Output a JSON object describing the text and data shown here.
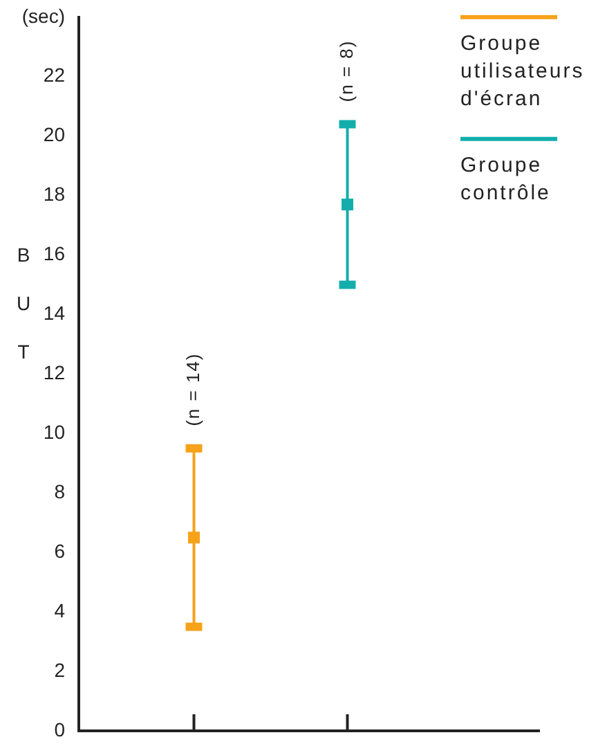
{
  "chart_data": {
    "type": "scatter",
    "ylabel": "BUT",
    "categories": [
      null,
      null
    ],
    "series": [
      {
        "name": "Groupe utilisateurs d'écran",
        "color": "#f7a21b",
        "values": [
          6.5,
          null
        ],
        "errors": [
          [
            3.5,
            9.5
          ],
          null
        ]
      },
      {
        "name": "Groupe contrôle",
        "color": "#13aeac",
        "values": [
          null,
          17.7
        ],
        "errors": [
          null,
          [
            15,
            20.4
          ]
        ]
      }
    ],
    "ylim": [
      0,
      24
    ],
    "yticks": [
      0,
      2,
      4,
      6,
      8,
      10,
      12,
      14,
      16,
      18,
      20,
      22,
      {
        "value": 24,
        "label": "(sec)"
      }
    ],
    "annotations": [
      "(n = 14)",
      "(n = 8)"
    ],
    "legend": "top right",
    "marker": "square",
    "tick_labels": "y"
  }
}
